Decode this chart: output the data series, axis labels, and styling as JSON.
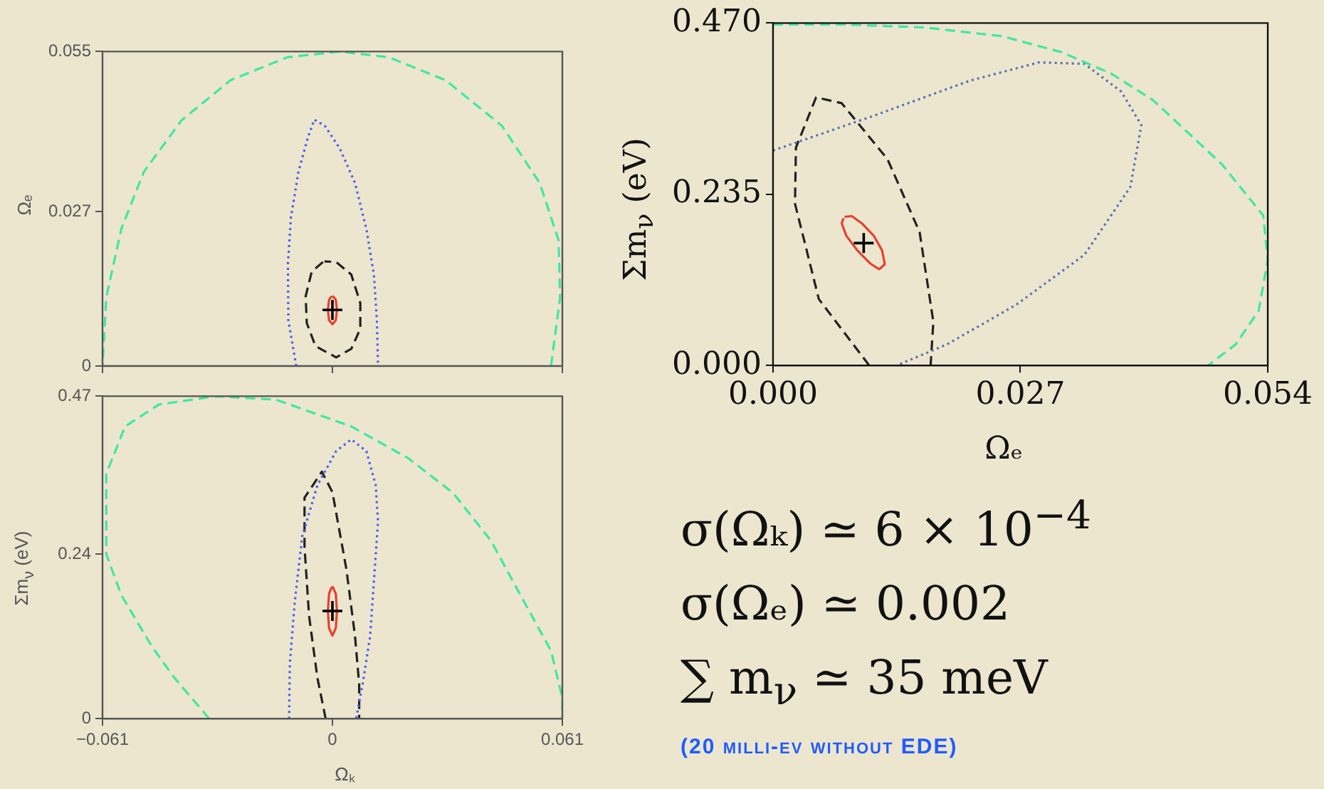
{
  "chart_data": [
    {
      "type": "line",
      "ylabel": "Ωₑ",
      "xlim": [
        -0.061,
        0.061
      ],
      "xticks": [
        -0.061,
        0,
        0.061
      ],
      "ylim": [
        0,
        0.055
      ],
      "yticks": [
        0,
        0.027,
        0.055
      ],
      "tick_labels": "y",
      "series": [
        {
          "type": "line",
          "color": "#3ee8a0",
          "line_style": "dashed",
          "marker": "none",
          "x": [
            0.058,
            0.0604,
            0.06,
            0.055,
            0.045,
            0.03,
            0.015,
            0.002,
            -0.012,
            -0.027,
            -0.04,
            -0.05,
            -0.056,
            -0.06,
            -0.061
          ],
          "values": [
            0,
            0.012,
            0.022,
            0.032,
            0.042,
            0.05,
            0.054,
            0.055,
            0.054,
            0.05,
            0.043,
            0.034,
            0.024,
            0.012,
            0
          ]
        },
        {
          "type": "line",
          "color": "#4a5ef0",
          "line_style": "dotted",
          "marker": "none",
          "x": [
            -0.0096,
            -0.0117,
            -0.0118,
            -0.011,
            -0.009,
            -0.0065,
            -0.0048,
            -0.002,
            0.002,
            0.006,
            0.009,
            0.011,
            0.0118,
            0.0121
          ],
          "values": [
            0,
            0.008,
            0.018,
            0.026,
            0.034,
            0.04,
            0.0431,
            0.042,
            0.038,
            0.032,
            0.024,
            0.016,
            0.008,
            0
          ]
        },
        {
          "type": "line",
          "color": "#222222",
          "line_style": "dashed",
          "marker": "none",
          "x": [
            -0.0025,
            -0.0055,
            -0.0071,
            -0.0068,
            -0.0045,
            0.001,
            0.005,
            0.0074,
            0.0074,
            0.005,
            0.001,
            -0.0021
          ],
          "values": [
            0.0182,
            0.0165,
            0.0122,
            0.0075,
            0.0035,
            0.0015,
            0.003,
            0.0065,
            0.011,
            0.016,
            0.0182,
            0.0183
          ]
        },
        {
          "type": "line",
          "color": "#e84030",
          "line_style": "solid",
          "marker": "none",
          "x": [
            0,
            0.0009,
            0.0012,
            0.0009,
            0,
            -0.0009,
            -0.0012,
            -0.0009,
            -0.0002
          ],
          "values": [
            0.0123,
            0.0116,
            0.0098,
            0.008,
            0.0073,
            0.008,
            0.0098,
            0.0116,
            0.0122
          ]
        },
        {
          "type": "scatter",
          "color": "#000000",
          "marker": "cross",
          "x": [
            0
          ],
          "values": [
            0.0098
          ]
        }
      ]
    },
    {
      "type": "line",
      "xlabel": "Ωₖ",
      "ylabel": "Σm$_{ν}$ (eV)",
      "xlim": [
        -0.061,
        0.061
      ],
      "xticks": [
        {
          "value": -0.061,
          "label": "−0.061"
        },
        0,
        0.061
      ],
      "ylim": [
        0,
        0.47
      ],
      "yticks": [
        0,
        0.24,
        0.47
      ],
      "series": [
        {
          "type": "line",
          "color": "#3ee8a0",
          "line_style": "dashed",
          "marker": "none",
          "x": [
            -0.0327,
            -0.042,
            -0.048,
            -0.056,
            -0.06,
            -0.06,
            -0.06,
            -0.055,
            -0.046,
            -0.031,
            -0.015,
            0.005,
            0.02,
            0.032,
            0.042,
            0.049,
            0.058,
            0.061,
            0.061
          ],
          "values": [
            0,
            0.06,
            0.106,
            0.18,
            0.24,
            0.3,
            0.357,
            0.426,
            0.458,
            0.47,
            0.465,
            0.426,
            0.38,
            0.329,
            0.26,
            0.189,
            0.099,
            0.03,
            0
          ]
        },
        {
          "type": "line",
          "color": "#4a5ef0",
          "line_style": "dotted",
          "marker": "none",
          "x": [
            -0.0115,
            -0.0113,
            -0.01,
            -0.008,
            -0.004,
            0.001,
            0.005,
            0.009,
            0.0115,
            0.0121,
            0.011,
            0.01,
            0.008,
            0.0063
          ],
          "values": [
            0,
            0.08,
            0.17,
            0.266,
            0.34,
            0.39,
            0.407,
            0.39,
            0.34,
            0.287,
            0.2,
            0.12,
            0.05,
            0
          ]
        },
        {
          "type": "line",
          "color": "#222222",
          "line_style": "dashed",
          "marker": "none",
          "x": [
            -0.0018,
            -0.004,
            -0.0062,
            -0.0074,
            -0.0074,
            -0.0028,
            0,
            0.0037,
            0.006,
            0.0071,
            0.0071
          ],
          "values": [
            0,
            0.06,
            0.15,
            0.25,
            0.322,
            0.36,
            0.33,
            0.218,
            0.12,
            0.05,
            0
          ]
        },
        {
          "type": "line",
          "color": "#e84030",
          "line_style": "solid",
          "marker": "none",
          "x": [
            0,
            0.0009,
            0.0012,
            0.0009,
            0,
            -0.0009,
            -0.0012,
            -0.0009,
            -0.0002
          ],
          "values": [
            0.193,
            0.182,
            0.157,
            0.132,
            0.121,
            0.132,
            0.157,
            0.182,
            0.192
          ]
        },
        {
          "type": "scatter",
          "color": "#000000",
          "marker": "cross",
          "x": [
            0
          ],
          "values": [
            0.157
          ]
        }
      ]
    },
    {
      "type": "line",
      "xlabel": "Ωₑ",
      "ylabel": "Σm$_{ν}$ (eV)",
      "xlim": [
        0,
        0.054
      ],
      "xticks": [
        {
          "value": 0,
          "label": "0.000"
        },
        0.027,
        0.054
      ],
      "ylim": [
        0,
        0.47
      ],
      "yticks": [
        {
          "value": 0,
          "label": "0.000"
        },
        0.235,
        {
          "value": 0.47,
          "label": "0.470"
        }
      ],
      "series": [
        {
          "type": "line",
          "color": "#3ee8a0",
          "line_style": "dashed",
          "marker": "none",
          "x": [
            0,
            0.008,
            0.0165,
            0.025,
            0.0315,
            0.037,
            0.0415,
            0.049,
            0.0535,
            0.054,
            0.053,
            0.0505,
            0.0475
          ],
          "values": [
            0.468,
            0.468,
            0.464,
            0.452,
            0.43,
            0.4,
            0.364,
            0.276,
            0.206,
            0.145,
            0.075,
            0.029,
            0
          ]
        },
        {
          "type": "line",
          "color": "#5a6fb0",
          "line_style": "dotted",
          "marker": "none",
          "x": [
            0,
            0.0115,
            0.0215,
            0.029,
            0.034,
            0.038,
            0.0402,
            0.039,
            0.034,
            0.0265,
            0.019,
            0.0135
          ],
          "values": [
            0.295,
            0.345,
            0.391,
            0.416,
            0.414,
            0.376,
            0.33,
            0.245,
            0.152,
            0.083,
            0.029,
            0
          ]
        },
        {
          "type": "line",
          "color": "#222222",
          "line_style": "dashed",
          "marker": "none",
          "x": [
            0.0105,
            0.005,
            0.0024,
            0.0025,
            0.0047,
            0.0075,
            0.0125,
            0.016,
            0.0175,
            0.0172
          ],
          "values": [
            0,
            0.091,
            0.222,
            0.299,
            0.368,
            0.36,
            0.283,
            0.183,
            0.06,
            0
          ]
        },
        {
          "type": "line",
          "color": "#e84030",
          "line_style": "solid",
          "marker": "none",
          "x": [
            0.0078,
            0.0086,
            0.0097,
            0.011,
            0.0119,
            0.0122,
            0.0116,
            0.0106,
            0.0092,
            0.008,
            0.0075,
            0.0077
          ],
          "values": [
            0.204,
            0.205,
            0.195,
            0.178,
            0.158,
            0.139,
            0.132,
            0.14,
            0.158,
            0.178,
            0.195,
            0.202
          ]
        },
        {
          "type": "scatter",
          "color": "#000000",
          "marker": "cross",
          "x": [
            0.0099
          ],
          "values": [
            0.168
          ]
        }
      ]
    },
    {
      "type": "other",
      "annotations": [
        "σ(Ωₖ) ≃ 6 × 10$^{−4}$",
        "σ(Ωₑ) ≃ 0.002",
        "∑ m$_{ν}$ ≃ 35 meV",
        "(20 milli-ev without EDE)"
      ]
    }
  ]
}
